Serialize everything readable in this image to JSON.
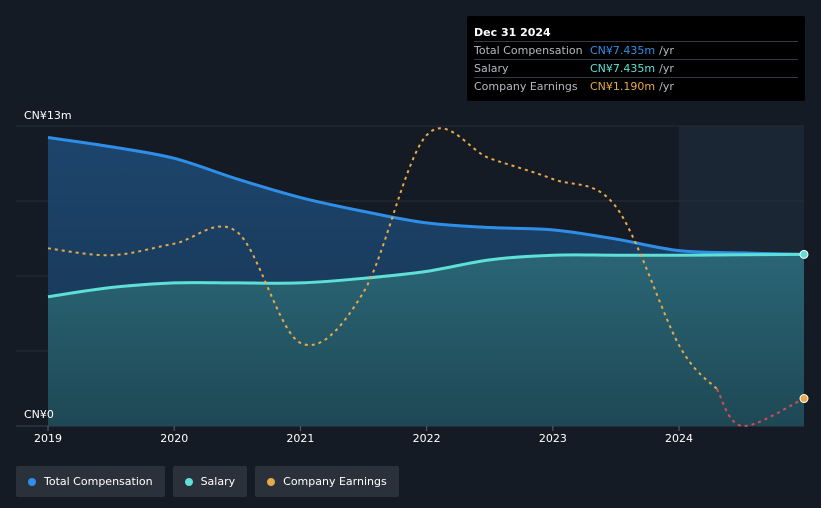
{
  "chart_data": {
    "type": "line",
    "x_ticks": [
      "2019",
      "2020",
      "2021",
      "2022",
      "2023",
      "2024"
    ],
    "y_top_label": "CN¥13m",
    "y_bottom_label": "CN¥0",
    "ylim": [
      0,
      13
    ],
    "xlim": [
      2019.0,
      2024.99
    ],
    "grid": true,
    "legend_position": "bottom-left",
    "series": [
      {
        "name": "Total Compensation",
        "color": "#2f8fe8",
        "x": [
          2019.0,
          2019.5,
          2020.0,
          2020.5,
          2021.0,
          2021.5,
          2022.0,
          2022.5,
          2023.0,
          2023.5,
          2024.0,
          2024.5,
          2024.99
        ],
        "values": [
          12.5,
          12.1,
          11.6,
          10.7,
          9.9,
          9.3,
          8.8,
          8.6,
          8.5,
          8.1,
          7.6,
          7.5,
          7.435
        ]
      },
      {
        "name": "Salary",
        "color": "#5ee0d6",
        "x": [
          2019.0,
          2019.5,
          2020.0,
          2020.5,
          2021.0,
          2021.5,
          2022.0,
          2022.5,
          2023.0,
          2023.5,
          2024.0,
          2024.5,
          2024.99
        ],
        "values": [
          5.6,
          6.0,
          6.2,
          6.2,
          6.2,
          6.4,
          6.7,
          7.2,
          7.4,
          7.4,
          7.4,
          7.42,
          7.435
        ]
      },
      {
        "name": "Company Earnings",
        "color": "#e8a94a",
        "negative_color": "#d64b55",
        "x": [
          2019.0,
          2019.5,
          2020.0,
          2020.5,
          2021.0,
          2021.5,
          2022.0,
          2022.5,
          2023.0,
          2023.5,
          2024.0,
          2024.5,
          2024.99
        ],
        "values": [
          7.7,
          7.4,
          7.9,
          8.4,
          3.6,
          5.8,
          12.6,
          11.6,
          10.7,
          9.5,
          3.5,
          0.0,
          1.19
        ]
      }
    ]
  },
  "tooltip": {
    "date": "Dec 31 2024",
    "rows": [
      {
        "name": "Total Compensation",
        "value": "CN¥7.435m",
        "unit": "/yr",
        "color": "#2f8fe8"
      },
      {
        "name": "Salary",
        "value": "CN¥7.435m",
        "unit": "/yr",
        "color": "#5ee0d6"
      },
      {
        "name": "Company Earnings",
        "value": "CN¥1.190m",
        "unit": "/yr",
        "color": "#e8a94a"
      }
    ]
  },
  "legend": [
    {
      "label": "Total Compensation",
      "color": "#2f8fe8"
    },
    {
      "label": "Salary",
      "color": "#5ee0d6"
    },
    {
      "label": "Company Earnings",
      "color": "#e8a94a"
    }
  ]
}
